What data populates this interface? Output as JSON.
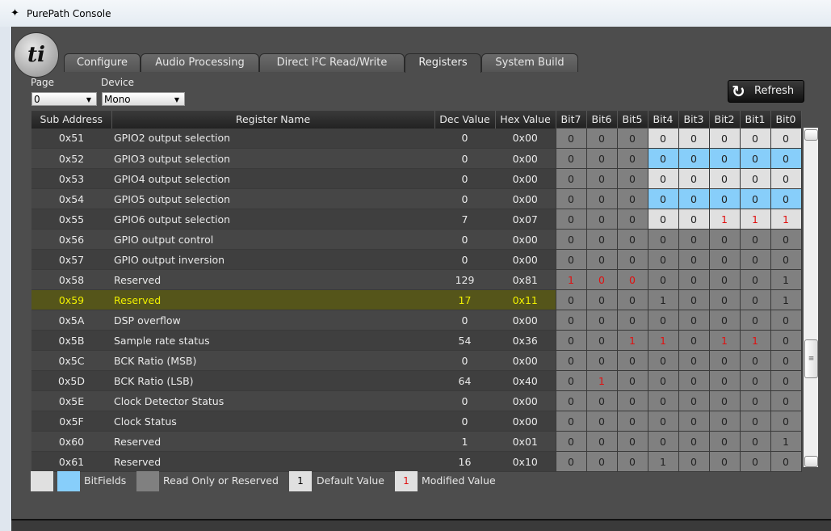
{
  "window": {
    "title": "PurePath Console",
    "logo_text": "ti"
  },
  "tabs": [
    {
      "label": "Configure"
    },
    {
      "label": "Audio Processing"
    },
    {
      "label": "Direct I²C Read/Write"
    },
    {
      "label": "Registers",
      "active": true
    },
    {
      "label": "System Build"
    }
  ],
  "page": {
    "label": "Page",
    "value": "0"
  },
  "device": {
    "label": "Device",
    "value": "Mono"
  },
  "refresh_label": "Refresh",
  "columns": [
    "Sub Address",
    "Register Name",
    "Dec Value",
    "Hex Value",
    "Bit7",
    "Bit6",
    "Bit5",
    "Bit4",
    "Bit3",
    "Bit2",
    "Bit1",
    "Bit0"
  ],
  "colors": {
    "bitfield_light": "#e0e0e0",
    "bitfield_blue": "#87cefa",
    "read_only": "#808080",
    "modified": "#e01010",
    "selected_row": "#55551a"
  },
  "rows": [
    {
      "addr": "0x51",
      "name": "GPIO2 output selection",
      "dec": "0",
      "hex": "0x00",
      "bits": [
        "0",
        "0",
        "0",
        "0",
        "0",
        "0",
        "0",
        "0"
      ],
      "types": "rrrwwwww",
      "mod": []
    },
    {
      "addr": "0x52",
      "name": "GPIO3 output selection",
      "dec": "0",
      "hex": "0x00",
      "bits": [
        "0",
        "0",
        "0",
        "0",
        "0",
        "0",
        "0",
        "0"
      ],
      "types": "rrrbbbbb",
      "mod": []
    },
    {
      "addr": "0x53",
      "name": "GPIO4 output selection",
      "dec": "0",
      "hex": "0x00",
      "bits": [
        "0",
        "0",
        "0",
        "0",
        "0",
        "0",
        "0",
        "0"
      ],
      "types": "rrrwwwww",
      "mod": []
    },
    {
      "addr": "0x54",
      "name": "GPIO5 output selection",
      "dec": "0",
      "hex": "0x00",
      "bits": [
        "0",
        "0",
        "0",
        "0",
        "0",
        "0",
        "0",
        "0"
      ],
      "types": "rrrbbbbb",
      "mod": []
    },
    {
      "addr": "0x55",
      "name": "GPIO6 output selection",
      "dec": "7",
      "hex": "0x07",
      "bits": [
        "0",
        "0",
        "0",
        "0",
        "0",
        "1",
        "1",
        "1"
      ],
      "types": "rrrwwwww",
      "mod": [
        5,
        6,
        7
      ]
    },
    {
      "addr": "0x56",
      "name": "GPIO output control",
      "dec": "0",
      "hex": "0x00",
      "bits": [
        "0",
        "0",
        "0",
        "0",
        "0",
        "0",
        "0",
        "0"
      ],
      "types": "rrrrrrrr",
      "mod": []
    },
    {
      "addr": "0x57",
      "name": "GPIO output inversion",
      "dec": "0",
      "hex": "0x00",
      "bits": [
        "0",
        "0",
        "0",
        "0",
        "0",
        "0",
        "0",
        "0"
      ],
      "types": "rrrrrrrr",
      "mod": []
    },
    {
      "addr": "0x58",
      "name": "Reserved",
      "dec": "129",
      "hex": "0x81",
      "bits": [
        "1",
        "0",
        "0",
        "0",
        "0",
        "0",
        "0",
        "1"
      ],
      "types": "rrrrrrrr",
      "mod": [
        0,
        1,
        2
      ]
    },
    {
      "addr": "0x59",
      "name": "Reserved",
      "dec": "17",
      "hex": "0x11",
      "bits": [
        "0",
        "0",
        "0",
        "1",
        "0",
        "0",
        "0",
        "1"
      ],
      "types": "rrrrrrrr",
      "mod": [],
      "selected": true
    },
    {
      "addr": "0x5A",
      "name": "DSP overflow",
      "dec": "0",
      "hex": "0x00",
      "bits": [
        "0",
        "0",
        "0",
        "0",
        "0",
        "0",
        "0",
        "0"
      ],
      "types": "rrrrrrrr",
      "mod": []
    },
    {
      "addr": "0x5B",
      "name": "Sample rate status",
      "dec": "54",
      "hex": "0x36",
      "bits": [
        "0",
        "0",
        "1",
        "1",
        "0",
        "1",
        "1",
        "0"
      ],
      "types": "rrrrrrrr",
      "mod": [
        2,
        3,
        5,
        6
      ]
    },
    {
      "addr": "0x5C",
      "name": "BCK Ratio (MSB)",
      "dec": "0",
      "hex": "0x00",
      "bits": [
        "0",
        "0",
        "0",
        "0",
        "0",
        "0",
        "0",
        "0"
      ],
      "types": "rrrrrrrr",
      "mod": []
    },
    {
      "addr": "0x5D",
      "name": "BCK Ratio (LSB)",
      "dec": "64",
      "hex": "0x40",
      "bits": [
        "0",
        "1",
        "0",
        "0",
        "0",
        "0",
        "0",
        "0"
      ],
      "types": "rrrrrrrr",
      "mod": [
        1
      ]
    },
    {
      "addr": "0x5E",
      "name": "Clock Detector Status",
      "dec": "0",
      "hex": "0x00",
      "bits": [
        "0",
        "0",
        "0",
        "0",
        "0",
        "0",
        "0",
        "0"
      ],
      "types": "rrrrrrrr",
      "mod": []
    },
    {
      "addr": "0x5F",
      "name": "Clock Status",
      "dec": "0",
      "hex": "0x00",
      "bits": [
        "0",
        "0",
        "0",
        "0",
        "0",
        "0",
        "0",
        "0"
      ],
      "types": "rrrrrrrr",
      "mod": []
    },
    {
      "addr": "0x60",
      "name": "Reserved",
      "dec": "1",
      "hex": "0x01",
      "bits": [
        "0",
        "0",
        "0",
        "0",
        "0",
        "0",
        "0",
        "1"
      ],
      "types": "rrrrrrrr",
      "mod": []
    },
    {
      "addr": "0x61",
      "name": "Reserved",
      "dec": "16",
      "hex": "0x10",
      "bits": [
        "0",
        "0",
        "0",
        "1",
        "0",
        "0",
        "0",
        "0"
      ],
      "types": "rrrrrrrr",
      "mod": []
    }
  ],
  "legend": {
    "bitfields": "BitFields",
    "read_only": "Read Only or Reserved",
    "default_sample": "1",
    "default": "Default Value",
    "modified_sample": "1",
    "modified": "Modified Value"
  }
}
